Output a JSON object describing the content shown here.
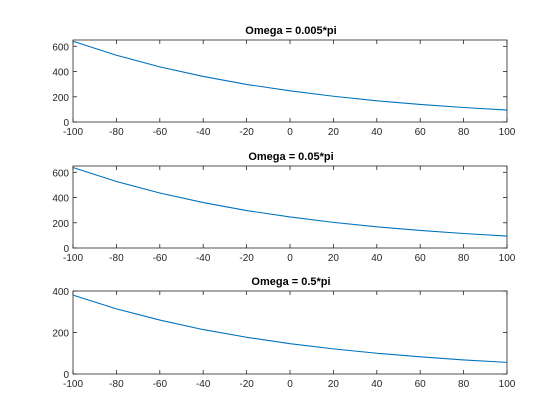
{
  "figure": {
    "background": "#ffffff",
    "axes_color": "#262626",
    "line_color": "#0072bd"
  },
  "chart_data": [
    {
      "type": "line",
      "title": "Omega = 0.005*pi",
      "xlabel": "",
      "ylabel": "",
      "xlim": [
        -100,
        100
      ],
      "ylim": [
        0,
        650
      ],
      "xticks": [
        -100,
        -80,
        -60,
        -40,
        -20,
        0,
        20,
        40,
        60,
        80,
        100
      ],
      "yticks": [
        0,
        200,
        400,
        600
      ],
      "grid": false,
      "series": [
        {
          "x": [
            -100,
            -80,
            -60,
            -40,
            -20,
            0,
            20,
            40,
            60,
            80,
            100
          ],
          "y": [
            640,
            529,
            437,
            361,
            298,
            247,
            204,
            168,
            139,
            115,
            95
          ]
        }
      ]
    },
    {
      "type": "line",
      "title": "Omega = 0.05*pi",
      "xlabel": "",
      "ylabel": "",
      "xlim": [
        -100,
        100
      ],
      "ylim": [
        0,
        650
      ],
      "xticks": [
        -100,
        -80,
        -60,
        -40,
        -20,
        0,
        20,
        40,
        60,
        80,
        100
      ],
      "yticks": [
        0,
        200,
        400,
        600
      ],
      "grid": false,
      "series": [
        {
          "x": [
            -100,
            -80,
            -60,
            -40,
            -20,
            0,
            20,
            40,
            60,
            80,
            100
          ],
          "y": [
            638,
            527,
            436,
            360,
            297,
            246,
            203,
            168,
            139,
            115,
            95
          ]
        }
      ]
    },
    {
      "type": "line",
      "title": "Omega = 0.5*pi",
      "xlabel": "",
      "ylabel": "",
      "xlim": [
        -100,
        100
      ],
      "ylim": [
        0,
        400
      ],
      "xticks": [
        -100,
        -80,
        -60,
        -40,
        -20,
        0,
        20,
        40,
        60,
        80,
        100
      ],
      "yticks": [
        0,
        200,
        400
      ],
      "grid": false,
      "series": [
        {
          "x": [
            -100,
            -80,
            -60,
            -40,
            -20,
            0,
            20,
            40,
            60,
            80,
            100
          ],
          "y": [
            380,
            314,
            260,
            214,
            177,
            146,
            121,
            100,
            83,
            68,
            56
          ]
        }
      ]
    }
  ]
}
